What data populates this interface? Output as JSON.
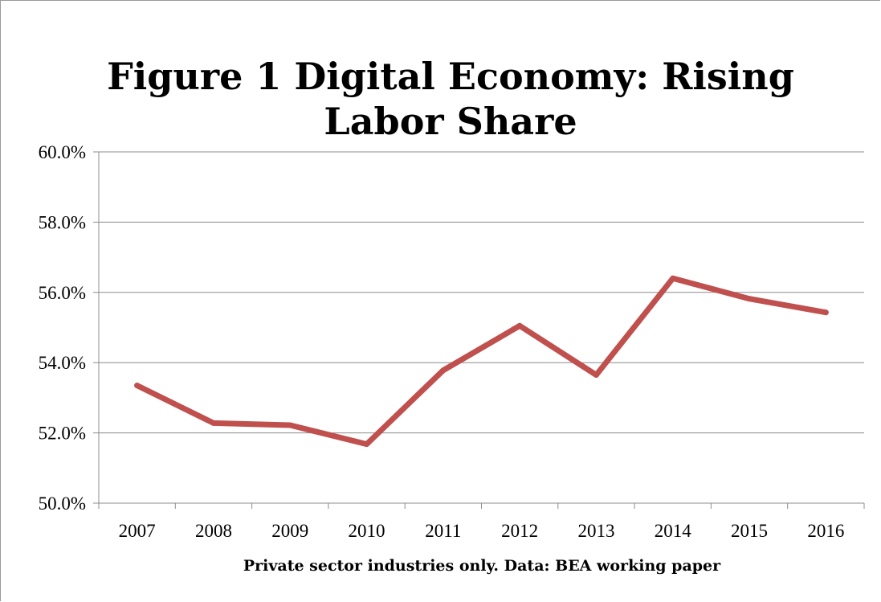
{
  "chart_data": {
    "type": "line",
    "title": "Figure 1 Digital Economy: Rising Labor Share",
    "xlabel": "Private sector industries only. Data: BEA working paper",
    "ylabel": "",
    "categories": [
      "2007",
      "2008",
      "2009",
      "2010",
      "2011",
      "2012",
      "2013",
      "2014",
      "2015",
      "2016"
    ],
    "series": [
      {
        "values": [
          53.35,
          52.28,
          52.22,
          51.68,
          53.78,
          55.05,
          53.65,
          56.4,
          55.82,
          55.43
        ]
      }
    ],
    "yticks": [
      "50.0%",
      "52.0%",
      "54.0%",
      "56.0%",
      "58.0%",
      "60.0%"
    ],
    "ylim": [
      50,
      60
    ],
    "grid": true,
    "legend": "none",
    "colors": {
      "line": "#c0504d",
      "grid": "#8c8c8c",
      "axis": "#8c8c8c"
    }
  }
}
